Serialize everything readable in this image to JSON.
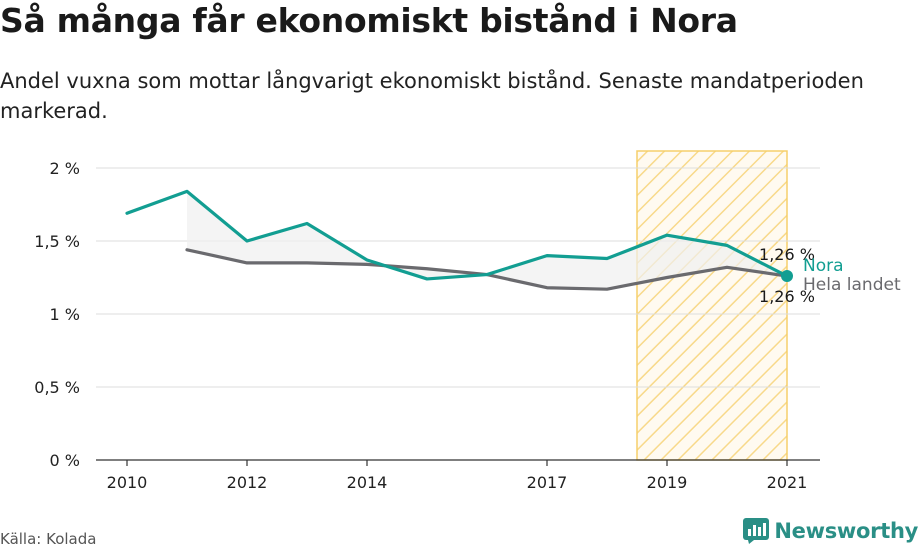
{
  "title": "Så många får ekonomiskt bistånd i Nora",
  "subtitle": "Andel vuxna som mottar långvarigt ekonomiskt bistånd. Senaste mandatperioden markerad.",
  "source": "Källa: Kolada",
  "brand": "Newsworthy",
  "colors": {
    "nora": "#129e92",
    "hela_landet": "#6a6a6e",
    "highlight_fill": "#fde7b0",
    "highlight_stroke": "#f6cf6b",
    "grid": "#dddddd"
  },
  "chart_data": {
    "type": "line",
    "x_ticks": [
      2010,
      2012,
      2014,
      2017,
      2019,
      2021
    ],
    "x_tick_labels": [
      "2010",
      "2012",
      "2014",
      "2017",
      "2019",
      "2021"
    ],
    "y_ticks": [
      0,
      0.5,
      1,
      1.5,
      2
    ],
    "y_tick_labels": [
      "0 %",
      "0,5 %",
      "1 %",
      "1,5 %",
      "2 %"
    ],
    "xlim": [
      2010,
      2021
    ],
    "ylim": [
      0,
      2
    ],
    "highlight_period": [
      2018.5,
      2021
    ],
    "series": [
      {
        "name": "Nora",
        "color": "#129e92",
        "x": [
          2010,
          2011,
          2012,
          2013,
          2014,
          2015,
          2016,
          2017,
          2018,
          2019,
          2020,
          2021
        ],
        "values": [
          1.69,
          1.84,
          1.5,
          1.62,
          1.37,
          1.24,
          1.27,
          1.4,
          1.38,
          1.54,
          1.47,
          1.26
        ],
        "end_label": "1,26 %"
      },
      {
        "name": "Hela landet",
        "color": "#6a6a6e",
        "x": [
          2011,
          2012,
          2013,
          2014,
          2015,
          2016,
          2017,
          2018,
          2019,
          2020,
          2021
        ],
        "values": [
          1.44,
          1.35,
          1.35,
          1.34,
          1.31,
          1.27,
          1.18,
          1.17,
          1.25,
          1.32,
          1.26
        ],
        "end_label": "1,26 %"
      }
    ]
  }
}
